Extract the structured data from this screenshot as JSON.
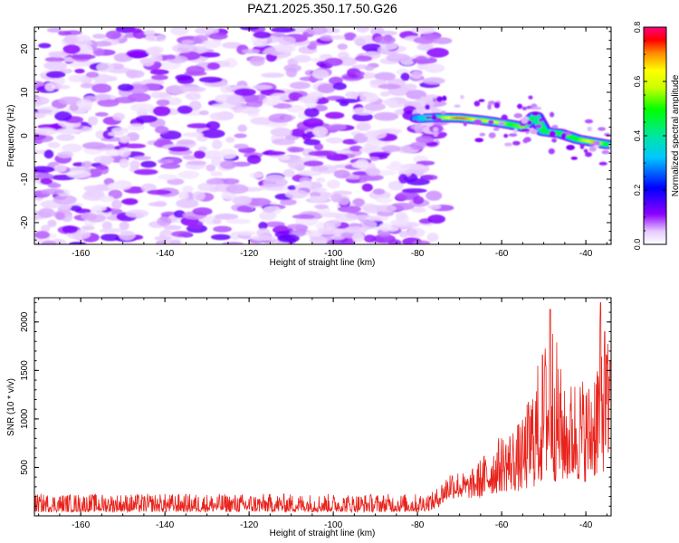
{
  "title": "PAZ1.2025.350.17.50.G26",
  "colors": {
    "snr_line": "#e8231c",
    "axis": "#000000",
    "background": "#ffffff"
  },
  "chart_data": [
    {
      "type": "heatmap",
      "name": "spectrogram",
      "xlabel": "Height of straight line (km)",
      "ylabel": "Frequency (Hz)",
      "xlim": [
        -171,
        -34
      ],
      "ylim": [
        -25,
        25
      ],
      "xticks": [
        -160,
        -140,
        -120,
        -100,
        -80,
        -60,
        -40
      ],
      "yticks": [
        -20,
        -10,
        0,
        10,
        20
      ],
      "colorbar": {
        "label": "Normalized spectral amplitude",
        "range": [
          0,
          0.8
        ],
        "ticks": [
          0,
          0.2,
          0.4,
          0.6,
          0.8
        ]
      },
      "noise_region": {
        "x_range": [
          -171,
          -74
        ],
        "f_range": [
          -25,
          25
        ],
        "amplitude_range": [
          0.02,
          0.12
        ]
      },
      "signal_ridge": [
        {
          "x": -80,
          "f": 4.0,
          "amp": 0.3
        },
        {
          "x": -75,
          "f": 4.2,
          "amp": 0.5
        },
        {
          "x": -70,
          "f": 4.1,
          "amp": 0.78
        },
        {
          "x": -65,
          "f": 3.6,
          "amp": 0.55
        },
        {
          "x": -62,
          "f": 3.2,
          "amp": 0.65
        },
        {
          "x": -58,
          "f": 2.6,
          "amp": 0.5
        },
        {
          "x": -55,
          "f": 2.0,
          "amp": 0.55
        },
        {
          "x": -52,
          "f": 4.5,
          "amp": 0.4
        },
        {
          "x": -50,
          "f": 1.0,
          "amp": 0.45
        },
        {
          "x": -46,
          "f": 0.5,
          "amp": 0.5
        },
        {
          "x": -42,
          "f": -0.8,
          "amp": 0.5
        },
        {
          "x": -38,
          "f": -1.5,
          "amp": 0.7
        },
        {
          "x": -35,
          "f": -2.0,
          "amp": 0.45
        }
      ]
    },
    {
      "type": "line",
      "name": "snr",
      "xlabel": "Height of straight line (km)",
      "ylabel": "SNR (10 * v/v)",
      "xlim": [
        -171,
        -34
      ],
      "ylim": [
        0,
        2250
      ],
      "xticks": [
        -160,
        -140,
        -120,
        -100,
        -80,
        -60,
        -40
      ],
      "yticks": [
        500,
        1000,
        1500,
        2000
      ],
      "series": [
        {
          "name": "SNR",
          "envelope": [
            {
              "x": -171,
              "lo": 40,
              "hi": 230
            },
            {
              "x": -80,
              "lo": 40,
              "hi": 230
            },
            {
              "x": -76,
              "lo": 60,
              "hi": 250
            },
            {
              "x": -72,
              "lo": 180,
              "hi": 500
            },
            {
              "x": -68,
              "lo": 180,
              "hi": 430
            },
            {
              "x": -65,
              "lo": 180,
              "hi": 600
            },
            {
              "x": -60,
              "lo": 250,
              "hi": 850
            },
            {
              "x": -55,
              "lo": 250,
              "hi": 1000
            },
            {
              "x": -52,
              "lo": 300,
              "hi": 1500
            },
            {
              "x": -48,
              "lo": 350,
              "hi": 2100
            },
            {
              "x": -45,
              "lo": 350,
              "hi": 1300
            },
            {
              "x": -42,
              "lo": 350,
              "hi": 1500
            },
            {
              "x": -39,
              "lo": 350,
              "hi": 1400
            },
            {
              "x": -36,
              "lo": 450,
              "hi": 2150
            },
            {
              "x": -34,
              "lo": 450,
              "hi": 1600
            }
          ],
          "spikes": [
            {
              "x": -48.5,
              "y": 2130
            },
            {
              "x": -36.5,
              "y": 2200
            },
            {
              "x": -35.5,
              "y": 1900
            },
            {
              "x": -49.5,
              "y": 1550
            },
            {
              "x": -34.2,
              "y": 1600
            }
          ]
        }
      ]
    }
  ]
}
